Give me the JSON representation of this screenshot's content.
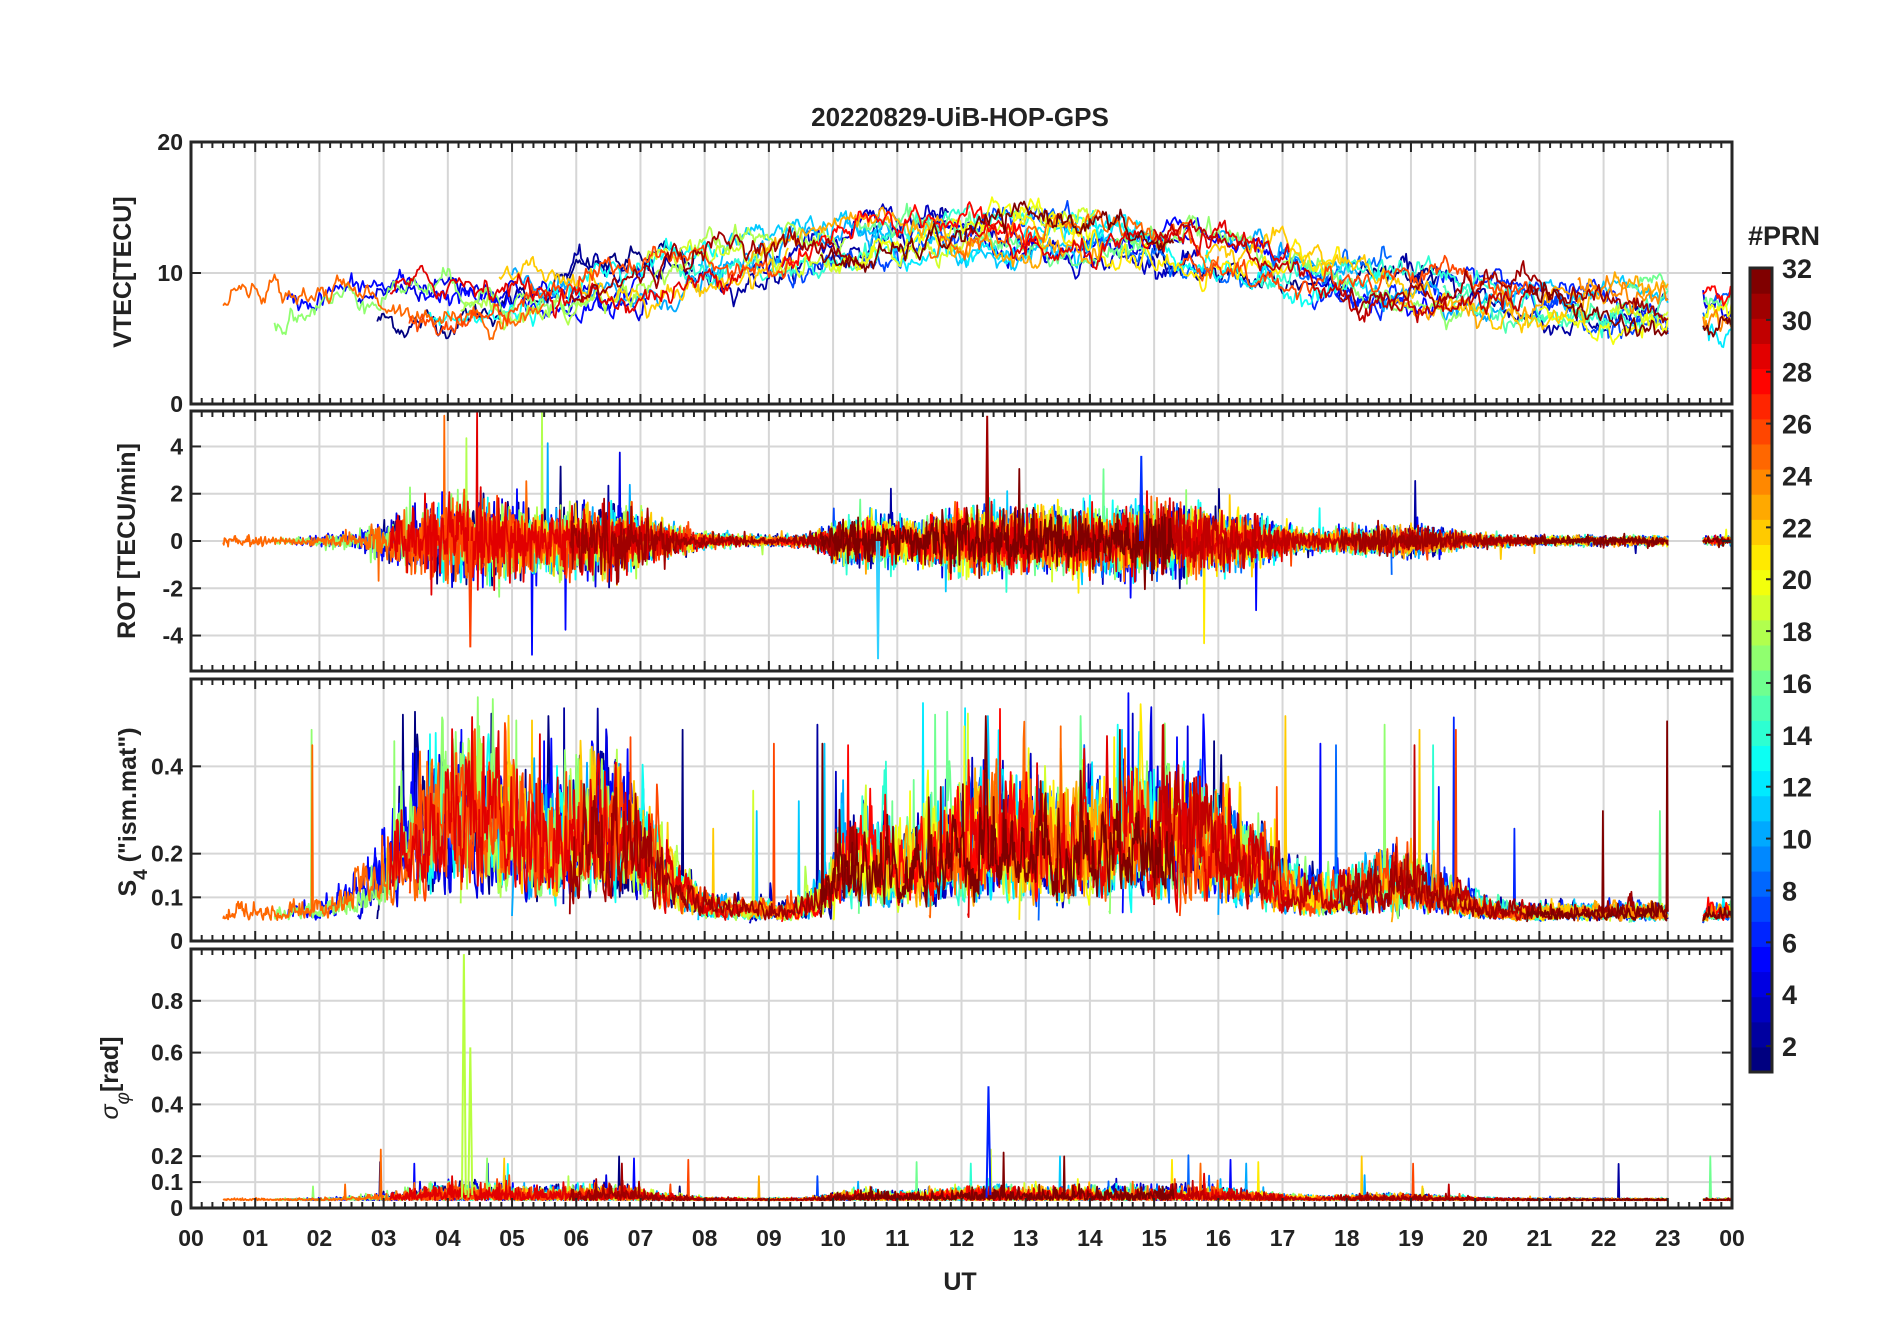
{
  "figure": {
    "title": "20220829-UiB-HOP-GPS",
    "colorbar_title": "#PRN"
  },
  "chart_data": [
    {
      "type": "line",
      "panel": "vtec",
      "ylabel": "VTEC[TECU]",
      "ylim": [
        0,
        20
      ],
      "yticks": [
        0,
        10,
        20
      ],
      "grid": true,
      "series_summary": "32 PRN series colored by PRN, values ~5–17 TECU, diurnal peak near 12–13 UT"
    },
    {
      "type": "line",
      "panel": "rot",
      "ylabel": "ROT [TECU/min]",
      "ylim": [
        -5.5,
        5.5
      ],
      "yticks": [
        -4,
        -2,
        0,
        2,
        4
      ],
      "grid": true
    },
    {
      "type": "line",
      "panel": "s4",
      "ylabel_main": "S",
      "ylabel_sub": "4",
      "ylabel_rest": "(\"ism.mat\")",
      "ylim": [
        0,
        0.6
      ],
      "yticks": [
        0,
        0.1,
        0.2,
        0.4
      ],
      "ytick_labels": [
        "0",
        "0.1",
        "0.2",
        "0.4"
      ],
      "grid": true
    },
    {
      "type": "line",
      "panel": "sigma_phi",
      "ylabel_main": "σ",
      "ylabel_sub": "φ",
      "ylabel_rest": "[rad]",
      "ylim": [
        0,
        1
      ],
      "yticks": [
        0,
        0.1,
        0.2,
        0.4,
        0.6,
        0.8
      ],
      "ytick_labels": [
        "0",
        "0.1",
        "0.2",
        "0.4",
        "0.6",
        "0.8"
      ],
      "grid": true,
      "xlabel": "UT",
      "xlim": [
        0,
        24
      ],
      "xtick_labels": [
        "00",
        "01",
        "02",
        "03",
        "04",
        "05",
        "06",
        "07",
        "08",
        "09",
        "10",
        "11",
        "12",
        "13",
        "14",
        "15",
        "16",
        "17",
        "18",
        "19",
        "20",
        "21",
        "22",
        "23",
        "00"
      ]
    }
  ],
  "colorbar": {
    "range": [
      1,
      32
    ],
    "ticks": [
      2,
      4,
      6,
      8,
      10,
      12,
      14,
      16,
      18,
      20,
      22,
      24,
      26,
      28,
      30,
      32
    ],
    "colormap": "jet"
  },
  "colors": {
    "grid": "#d6d6d6",
    "axis": "#262626"
  }
}
